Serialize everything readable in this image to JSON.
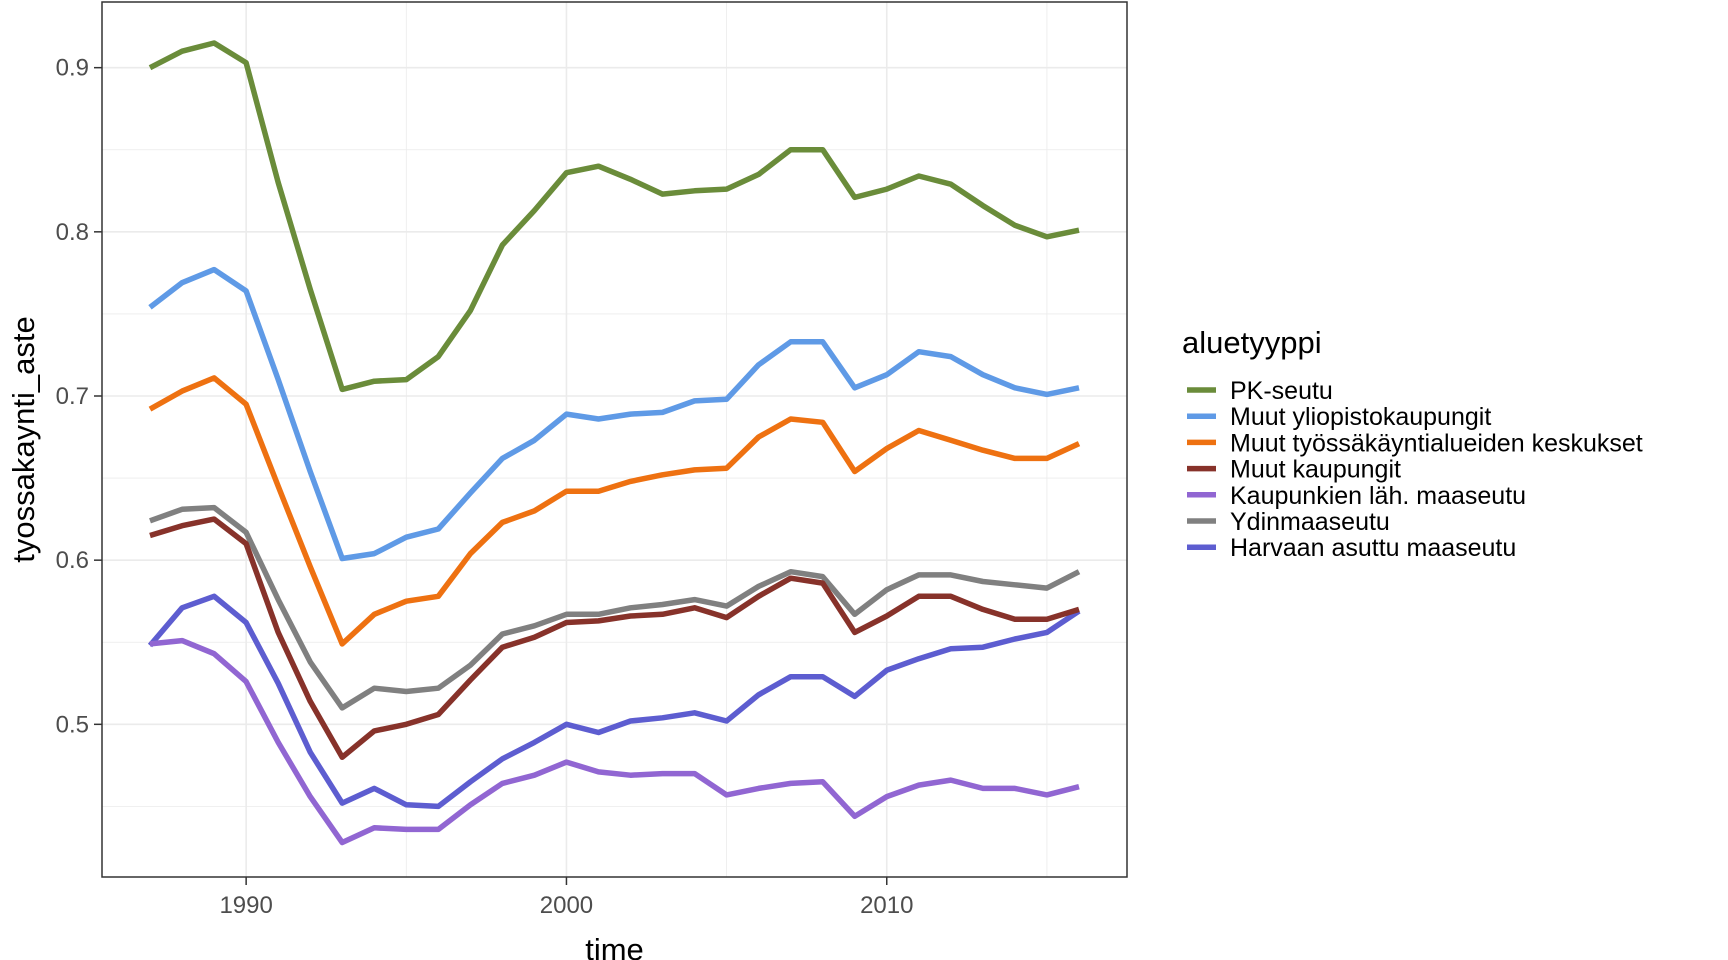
{
  "chart_data": {
    "type": "line",
    "xlabel": "time",
    "ylabel": "tyossakaynti_aste",
    "xlim": [
      1985.5,
      2017.5
    ],
    "ylim": [
      0.407,
      0.94
    ],
    "x_ticks": [
      1990,
      2000,
      2010
    ],
    "x_tick_labels": [
      "1990",
      "2000",
      "2010"
    ],
    "y_ticks": [
      0.5,
      0.6,
      0.7,
      0.8,
      0.9
    ],
    "y_tick_labels": [
      "0.5",
      "0.6",
      "0.7",
      "0.8",
      "0.9"
    ],
    "grid": true,
    "legend": {
      "title": "aluetyyppi",
      "position": "right"
    },
    "x": [
      1987,
      1988,
      1989,
      1990,
      1991,
      1992,
      1993,
      1994,
      1995,
      1996,
      1997,
      1998,
      1999,
      2000,
      2001,
      2002,
      2003,
      2004,
      2005,
      2006,
      2007,
      2008,
      2009,
      2010,
      2011,
      2012,
      2013,
      2014,
      2015,
      2016
    ],
    "series": [
      {
        "name": "PK-seutu",
        "color": "#6a8c3a",
        "values": [
          0.9,
          0.91,
          0.915,
          0.903,
          0.83,
          0.765,
          0.704,
          0.709,
          0.71,
          0.724,
          0.752,
          0.792,
          0.813,
          0.836,
          0.84,
          0.832,
          0.823,
          0.825,
          0.826,
          0.835,
          0.85,
          0.85,
          0.821,
          0.826,
          0.834,
          0.829,
          0.816,
          0.804,
          0.797,
          0.801
        ]
      },
      {
        "name": "Muut yliopistokaupungit",
        "color": "#5f9ae6",
        "values": [
          0.754,
          0.769,
          0.777,
          0.764,
          0.71,
          0.654,
          0.601,
          0.604,
          0.614,
          0.619,
          0.641,
          0.662,
          0.673,
          0.689,
          0.686,
          0.689,
          0.69,
          0.697,
          0.698,
          0.719,
          0.733,
          0.733,
          0.705,
          0.713,
          0.727,
          0.724,
          0.713,
          0.705,
          0.701,
          0.705
        ]
      },
      {
        "name": "Muut työssäkäyntialueiden keskukset",
        "color": "#ee7111",
        "values": [
          0.692,
          0.703,
          0.711,
          0.695,
          0.645,
          0.596,
          0.549,
          0.567,
          0.575,
          0.578,
          0.604,
          0.623,
          0.63,
          0.642,
          0.642,
          0.648,
          0.652,
          0.655,
          0.656,
          0.675,
          0.686,
          0.684,
          0.654,
          0.668,
          0.679,
          0.673,
          0.667,
          0.662,
          0.662,
          0.671
        ]
      },
      {
        "name": "Muut kaupungit",
        "color": "#87322a",
        "values": [
          0.615,
          0.621,
          0.625,
          0.61,
          0.556,
          0.514,
          0.48,
          0.496,
          0.5,
          0.506,
          0.527,
          0.547,
          0.553,
          0.562,
          0.563,
          0.566,
          0.567,
          0.571,
          0.565,
          0.578,
          0.589,
          0.586,
          0.556,
          0.566,
          0.578,
          0.578,
          0.57,
          0.564,
          0.564,
          0.57
        ]
      },
      {
        "name": "Kaupunkien läh. maaseutu",
        "color": "#9166d2",
        "values": [
          0.549,
          0.551,
          0.543,
          0.526,
          0.489,
          0.456,
          0.428,
          0.437,
          0.436,
          0.436,
          0.451,
          0.464,
          0.469,
          0.477,
          0.471,
          0.469,
          0.47,
          0.47,
          0.457,
          0.461,
          0.464,
          0.465,
          0.444,
          0.456,
          0.463,
          0.466,
          0.461,
          0.461,
          0.457,
          0.462
        ]
      },
      {
        "name": "Ydinmaaseutu",
        "color": "#808080",
        "values": [
          0.624,
          0.631,
          0.632,
          0.617,
          0.576,
          0.538,
          0.51,
          0.522,
          0.52,
          0.522,
          0.536,
          0.555,
          0.56,
          0.567,
          0.567,
          0.571,
          0.573,
          0.576,
          0.572,
          0.584,
          0.593,
          0.59,
          0.567,
          0.582,
          0.591,
          0.591,
          0.587,
          0.585,
          0.583,
          0.593
        ]
      },
      {
        "name": "Harvaan asuttu maaseutu",
        "color": "#5d5dd0",
        "values": [
          0.548,
          0.571,
          0.578,
          0.562,
          0.525,
          0.483,
          0.452,
          0.461,
          0.451,
          0.45,
          0.465,
          0.479,
          0.489,
          0.5,
          0.495,
          0.502,
          0.504,
          0.507,
          0.502,
          0.518,
          0.529,
          0.529,
          0.517,
          0.533,
          0.54,
          0.546,
          0.547,
          0.552,
          0.556,
          0.569
        ]
      }
    ]
  }
}
